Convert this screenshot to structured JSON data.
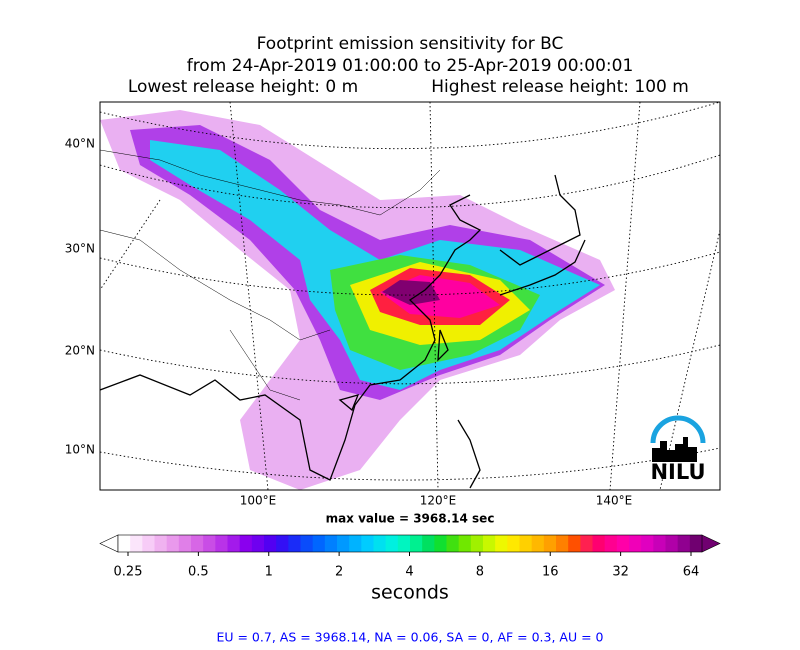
{
  "title": {
    "line1": "Footprint emission sensitivity for BC",
    "line2": "from 24-Apr-2019 01:00:00 to 25-Apr-2019 00:00:01",
    "lowest": "Lowest release height: 0 m",
    "highest": "Highest release height: 100 m"
  },
  "map": {
    "lat_labels": [
      "40°N",
      "30°N",
      "20°N",
      "10°N"
    ],
    "lon_labels": [
      "100°E",
      "120°E",
      "140°E"
    ],
    "logo": "NILU",
    "max_value": "max value = 3968.14 sec"
  },
  "colorbar": {
    "ticks": [
      "0.25",
      "0.5",
      "1",
      "2",
      "4",
      "8",
      "16",
      "32",
      "64"
    ],
    "label": "seconds",
    "colors": [
      "#ffffff",
      "#fbe5fb",
      "#f7ccf7",
      "#f0b2f0",
      "#e999ec",
      "#e07fe8",
      "#d766e6",
      "#c94de6",
      "#b933e8",
      "#a31aeb",
      "#8a00ee",
      "#6f00f0",
      "#5200f2",
      "#3310f5",
      "#1a2cf8",
      "#0a4cfb",
      "#0066ff",
      "#0080ff",
      "#0099ff",
      "#00b3ff",
      "#00ccff",
      "#00e0f0",
      "#00f0e0",
      "#00f5c0",
      "#00f090",
      "#00e060",
      "#10e030",
      "#40e010",
      "#70e800",
      "#a0f000",
      "#c8f800",
      "#eef800",
      "#ffe800",
      "#ffd000",
      "#ffb800",
      "#ffa000",
      "#ff8000",
      "#ff5000",
      "#ff2050",
      "#ff0070",
      "#ff0090",
      "#ff00a8",
      "#f000b8",
      "#e000c0",
      "#c800b8",
      "#b000a8",
      "#900090",
      "#700070"
    ]
  },
  "footer": "EU = 0.7,  AS = 3968.14,  NA = 0.06,  SA = 0,  AF = 0.3,  AU = 0"
}
